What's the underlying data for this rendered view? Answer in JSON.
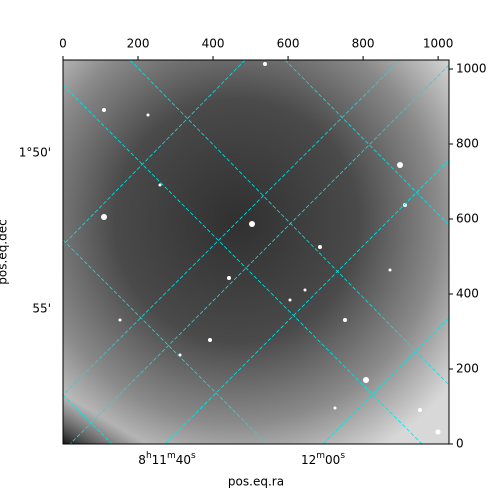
{
  "chart_data": {
    "type": "image",
    "xlabel": "pos.eq.ra",
    "ylabel": "pos.eq.dec",
    "xlim": [
      0,
      1029
    ],
    "ylim": [
      0,
      1024
    ],
    "xticks": [
      0,
      200,
      400,
      600,
      800,
      1000
    ],
    "yticks": [
      0,
      200,
      400,
      600,
      800,
      1000
    ],
    "ra_ticks": [
      "8h11m40s",
      "12m00s"
    ],
    "dec_ticks": [
      "1°50'",
      "55'"
    ],
    "grid": true,
    "grid_color": "#00e5e5"
  }
}
